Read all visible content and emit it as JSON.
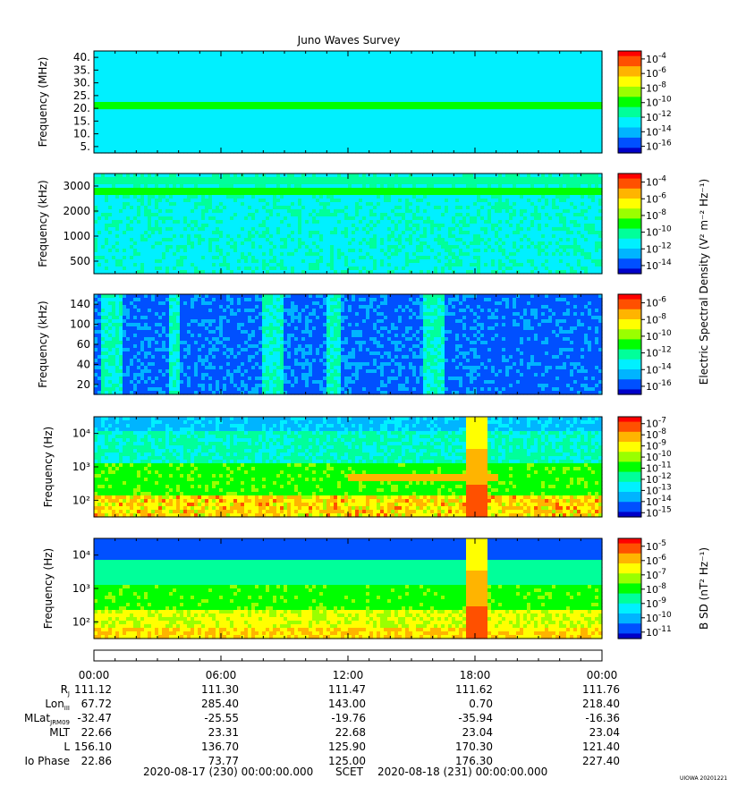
{
  "title": "Juno Waves Survey",
  "stamp": "UIOWA 20201221",
  "colorbar_label_upper": "Electric Spectral Density (V² m⁻² Hz⁻¹)",
  "colorbar_label_lower": "B SD (nT² Hz⁻¹)",
  "colormap": [
    "#0000c8",
    "#0050ff",
    "#00b4ff",
    "#00f0ff",
    "#00ff9a",
    "#00ff00",
    "#9aff00",
    "#ffff00",
    "#ffb400",
    "#ff5000",
    "#ff0000"
  ],
  "chart_data": [
    {
      "type": "heatmap",
      "title": "Juno Waves Survey",
      "ylabel": "Frequency (MHz)",
      "yscale": "linear",
      "ylim": [
        3.5,
        41
      ],
      "yticks": [
        "40.",
        "35.",
        "30.",
        "25.",
        "20.",
        "15.",
        "10.",
        "5."
      ],
      "colorbar_ticks": [
        "-4",
        "-6",
        "-8",
        "-10",
        "-12",
        "-14",
        "-16"
      ],
      "colorbar_range": [
        -17,
        -4
      ],
      "background_level": 0.3,
      "bands": [
        {
          "freq": 21,
          "level": 0.45
        }
      ]
    },
    {
      "type": "heatmap",
      "ylabel": "Frequency (kHz)",
      "yscale": "log",
      "ylim": [
        150,
        3000
      ],
      "yticks": [
        "3000",
        "2000",
        "1000",
        "500"
      ],
      "colorbar_ticks": [
        "-4",
        "-6",
        "-8",
        "-10",
        "-12",
        "-14"
      ],
      "colorbar_range": [
        -15,
        -3.5
      ],
      "background_level": 0.34,
      "bands": [
        {
          "freq": 1800,
          "level": 0.45
        },
        {
          "freq": 2400,
          "level": 0.4
        }
      ]
    },
    {
      "type": "heatmap",
      "ylabel": "Frequency (kHz)",
      "yscale": "log",
      "ylim": [
        20,
        140
      ],
      "yticks": [
        "140",
        "100",
        "60",
        "40",
        "20"
      ],
      "colorbar_ticks": [
        "-6",
        "-8",
        "-10",
        "-12",
        "-14",
        "-16"
      ],
      "colorbar_range": [
        -17,
        -5.5
      ],
      "background_level": 0.14
    },
    {
      "type": "heatmap",
      "ylabel": "Frequency (Hz)",
      "yscale": "log",
      "ylim": [
        60,
        20000
      ],
      "yticks": [
        "10⁴",
        "10³",
        "10²"
      ],
      "colorbar_ticks": [
        "-7",
        "-8",
        "-9",
        "-10",
        "-11",
        "-12",
        "-13",
        "-14",
        "-15"
      ],
      "colorbar_range": [
        -15,
        -7
      ],
      "background_level": 0.15,
      "features": [
        {
          "kind": "burst",
          "start_hour": 41.5,
          "end_hour": 42.5,
          "level": 0.95
        },
        {
          "kind": "line",
          "freq": 600,
          "start_hour": 36,
          "end_hour": 43,
          "level": 0.8
        }
      ]
    },
    {
      "type": "heatmap",
      "ylabel": "B SD (nT² Hz⁻¹)",
      "axis_label": "Frequency (Hz)",
      "yscale": "log",
      "ylim": [
        60,
        20000
      ],
      "yticks": [
        "10⁴",
        "10³",
        "10²"
      ],
      "colorbar_ticks": [
        "-5",
        "-6",
        "-7",
        "-8",
        "-9",
        "-10",
        "-11"
      ],
      "colorbar_range": [
        -11,
        -4.5
      ],
      "background_level": 0.1,
      "features": [
        {
          "kind": "burst",
          "start_hour": 41.5,
          "end_hour": 42.5,
          "level": 0.95
        }
      ]
    }
  ],
  "x_axis": {
    "start": "2020-08-17 (230) 00:00:00.000",
    "label": "SCET",
    "end": "2020-08-18 (231) 00:00:00.000",
    "ticks": [
      "00:00",
      "06:00",
      "12:00",
      "18:00",
      "00:00"
    ]
  },
  "ephemeris": [
    {
      "name": "R",
      "sub": "J",
      "values": [
        "111.12",
        "111.30",
        "111.47",
        "111.62",
        "111.76"
      ]
    },
    {
      "name": "Lon",
      "sub": "III",
      "values": [
        "67.72",
        "285.40",
        "143.00",
        "0.70",
        "218.40"
      ]
    },
    {
      "name": "MLat",
      "sub": "JRM09",
      "values": [
        "-32.47",
        "-25.55",
        "-19.76",
        "-35.94",
        "-16.36"
      ]
    },
    {
      "name": "MLT",
      "sub": "",
      "values": [
        "22.66",
        "23.31",
        "22.68",
        "23.04",
        "23.04"
      ]
    },
    {
      "name": "L",
      "sub": "",
      "values": [
        "156.10",
        "136.70",
        "125.90",
        "170.30",
        "121.40"
      ]
    },
    {
      "name": "Io Phase",
      "sub": "",
      "values": [
        "22.86",
        "73.77",
        "125.00",
        "176.30",
        "227.40"
      ]
    }
  ]
}
